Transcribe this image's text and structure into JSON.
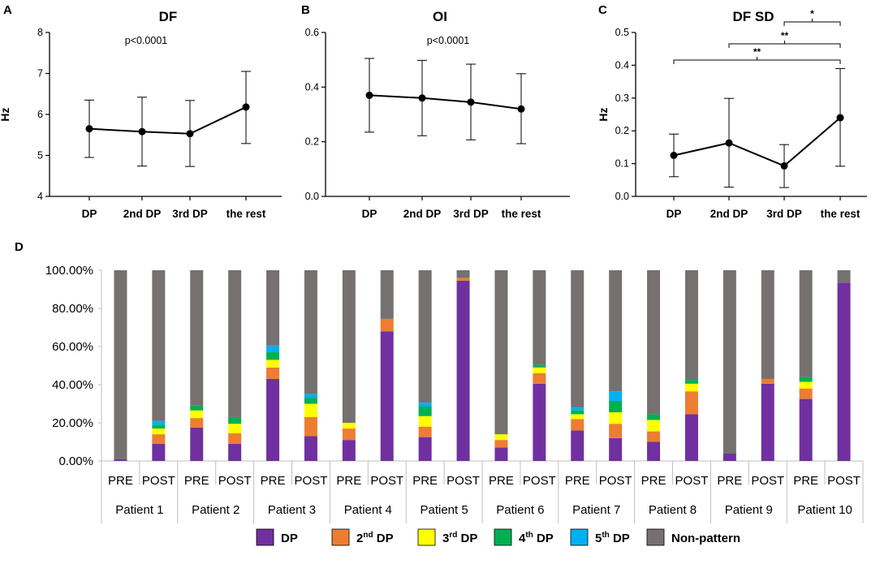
{
  "panels": {
    "a": "A",
    "b": "B",
    "c": "C",
    "d": "D"
  },
  "chart_data": [
    {
      "type": "line",
      "panel": "A",
      "title": "DF",
      "ylabel": "Hz",
      "xlabel": "",
      "annotation": "p<0.0001",
      "categories": [
        "DP",
        "2nd DP",
        "3rd DP",
        "the rest"
      ],
      "ylim": [
        4,
        8
      ],
      "yticks": [
        "4",
        "5",
        "6",
        "7",
        "8"
      ],
      "values": [
        5.65,
        5.58,
        5.53,
        6.18
      ],
      "err_low": [
        4.95,
        4.74,
        4.73,
        5.29
      ],
      "err_high": [
        6.35,
        6.42,
        6.34,
        7.05
      ]
    },
    {
      "type": "line",
      "panel": "B",
      "title": "OI",
      "ylabel": "",
      "xlabel": "",
      "annotation": "p<0.0001",
      "categories": [
        "DP",
        "2nd DP",
        "3rd DP",
        "the rest"
      ],
      "ylim": [
        0,
        0.6
      ],
      "yticks": [
        "0.0",
        "0.2",
        "0.4",
        "0.6"
      ],
      "values": [
        0.37,
        0.36,
        0.345,
        0.32
      ],
      "err_low": [
        0.235,
        0.222,
        0.207,
        0.193
      ],
      "err_high": [
        0.505,
        0.498,
        0.484,
        0.449
      ]
    },
    {
      "type": "line",
      "panel": "C",
      "title": "DF SD",
      "ylabel": "Hz",
      "xlabel": "",
      "categories": [
        "DP",
        "2nd DP",
        "3rd DP",
        "the rest"
      ],
      "ylim": [
        0,
        0.5
      ],
      "yticks": [
        "0.0",
        "0.1",
        "0.2",
        "0.3",
        "0.4",
        "0.5"
      ],
      "values": [
        0.125,
        0.163,
        0.093,
        0.24
      ],
      "err_low": [
        0.06,
        0.028,
        0.027,
        0.092
      ],
      "err_high": [
        0.19,
        0.299,
        0.158,
        0.39
      ],
      "significance": [
        {
          "from": "3rd DP",
          "to": "the rest",
          "label": "*"
        },
        {
          "from": "2nd DP",
          "to": "the rest",
          "label": "**"
        },
        {
          "from": "DP",
          "to": "the rest",
          "label": "**"
        }
      ]
    },
    {
      "type": "bar",
      "stacked": true,
      "panel": "D",
      "title": "",
      "xlabel": "",
      "ylabel": "",
      "ylim": [
        0,
        100
      ],
      "yticks": [
        "0.00%",
        "20.00%",
        "40.00%",
        "60.00%",
        "80.00%",
        "100.00%"
      ],
      "groups": [
        "Patient 1",
        "Patient 2",
        "Patient 3",
        "Patient 4",
        "Patient 5",
        "Patient 6",
        "Patient 7",
        "Patient 8",
        "Patient 9",
        "Patient 10"
      ],
      "categories": [
        "PRE",
        "POST",
        "PRE",
        "POST",
        "PRE",
        "POST",
        "PRE",
        "POST",
        "PRE",
        "POST",
        "PRE",
        "POST",
        "PRE",
        "POST",
        "PRE",
        "POST",
        "PRE",
        "POST",
        "PRE",
        "POST"
      ],
      "series": [
        {
          "name": "DP",
          "color": "#7030A0",
          "values": [
            1,
            9,
            17.5,
            9,
            43,
            13,
            11,
            68,
            12.5,
            94.5,
            7,
            40.5,
            16,
            12,
            10,
            24.5,
            4,
            40.5,
            32.5,
            93.5
          ]
        },
        {
          "name": "2nd DP",
          "color": "#ED7D31",
          "values": [
            0,
            5,
            5,
            5.5,
            6,
            10,
            6,
            6.5,
            5.5,
            1.5,
            4,
            5.5,
            6,
            7.5,
            5.5,
            12,
            0,
            2.5,
            5.5,
            0
          ]
        },
        {
          "name": "3rd DP",
          "color": "#FFFF00",
          "values": [
            0,
            3,
            4,
            5,
            4,
            7,
            3,
            0,
            5.5,
            0,
            3,
            3,
            2.5,
            6,
            6,
            4,
            0,
            0,
            3.5,
            0
          ]
        },
        {
          "name": "4th DP",
          "color": "#00B050",
          "values": [
            0,
            2,
            2.5,
            3.5,
            4,
            3,
            0,
            0,
            5,
            0,
            0,
            1.5,
            2,
            6,
            3,
            2,
            0,
            0,
            2.5,
            0
          ]
        },
        {
          "name": "5th DP",
          "color": "#00B0F0",
          "values": [
            0,
            2,
            0,
            0,
            3.5,
            2,
            0,
            0,
            2,
            0,
            0,
            0,
            1.5,
            5,
            0,
            0,
            0,
            0,
            0,
            0
          ]
        },
        {
          "name": "Non-pattern",
          "color": "#767171",
          "values": [
            99,
            79,
            71,
            77,
            39.5,
            65,
            80,
            25.5,
            69.5,
            4,
            86,
            49.5,
            72,
            63.5,
            75.5,
            57.5,
            96,
            57,
            56,
            6.5
          ]
        }
      ]
    }
  ],
  "legend": [
    {
      "name": "DP",
      "base": "DP",
      "sup": "",
      "tail": "",
      "color": "#7030A0"
    },
    {
      "name": "2nd DP",
      "base": "2",
      "sup": "nd",
      "tail": " DP",
      "color": "#ED7D31"
    },
    {
      "name": "3rd DP",
      "base": "3",
      "sup": "rd",
      "tail": " DP",
      "color": "#FFFF00"
    },
    {
      "name": "4th DP",
      "base": "4",
      "sup": "th",
      "tail": " DP",
      "color": "#00B050"
    },
    {
      "name": "5th DP",
      "base": "5",
      "sup": "th",
      "tail": " DP",
      "color": "#00B0F0"
    },
    {
      "name": "Non-pattern",
      "base": "Non-pattern",
      "sup": "",
      "tail": "",
      "color": "#767171"
    }
  ]
}
